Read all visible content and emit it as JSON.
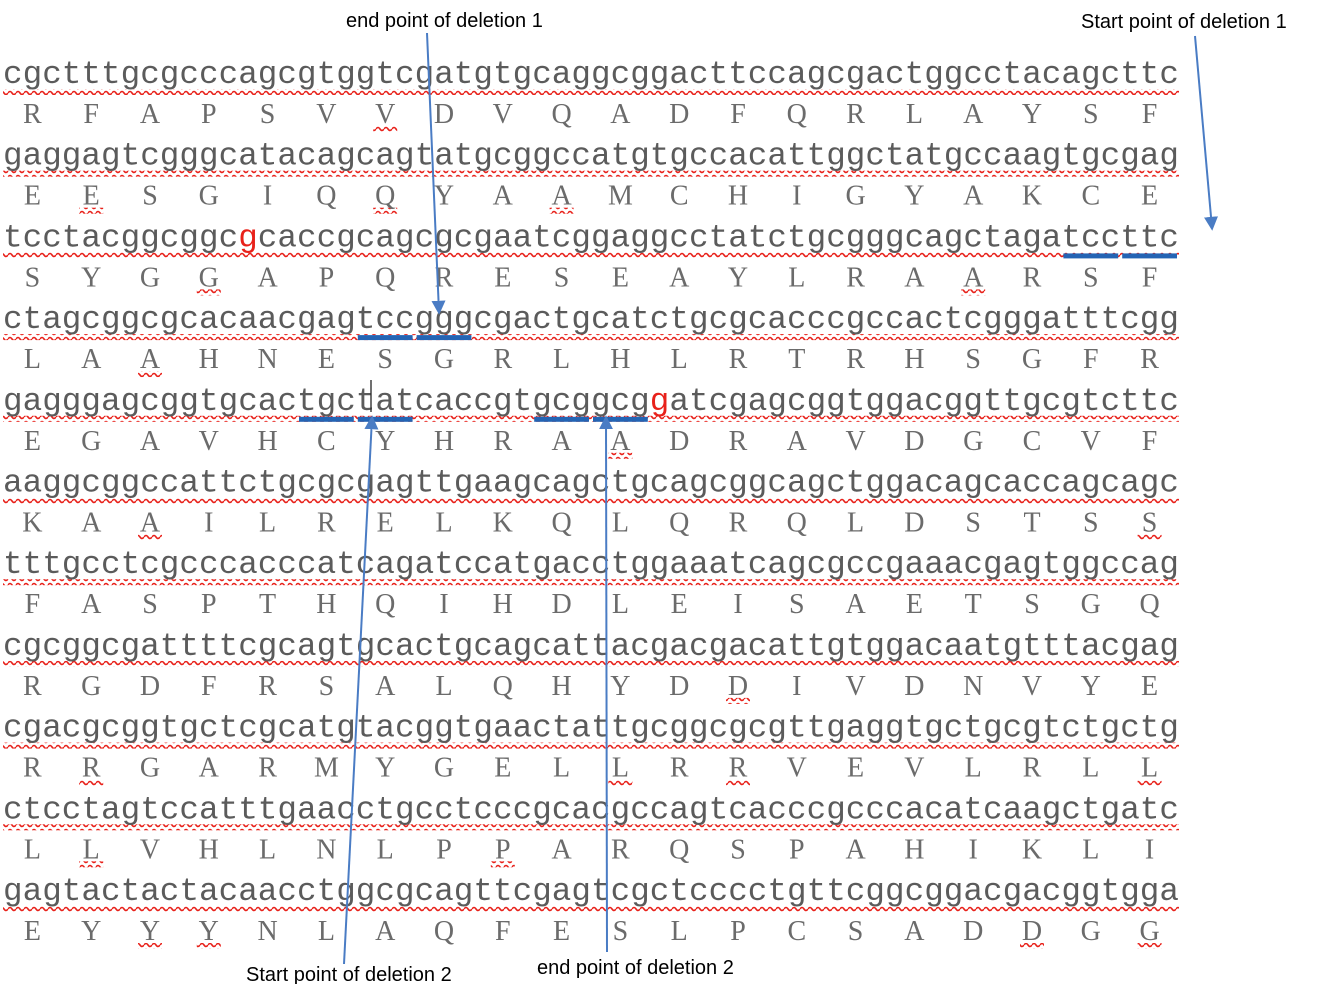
{
  "annotations": [
    {
      "label": "end point of deletion 1"
    },
    {
      "label": "Start point of deletion 1"
    },
    {
      "label": "Start point of deletion 2"
    },
    {
      "label": "end point of deletion 2"
    }
  ],
  "colors": {
    "dna_text": "#5b5b5b",
    "amino_acid_text": "#6b6b6b",
    "highlight_base": "#e8211a",
    "squiggle_underline": "#e8211a",
    "marker_bar": "#2464b4",
    "arrow": "#4a7cc4"
  },
  "rows": [
    {
      "dna": "cgctttgcgcccagcgtggtcgatgtgcaggcggacttccagcgactggcctacagcttc",
      "aa": [
        "R",
        "F",
        "A",
        "P",
        "S",
        "V",
        "V",
        "D",
        "V",
        "Q",
        "A",
        "D",
        "F",
        "Q",
        "R",
        "L",
        "A",
        "Y",
        "S",
        "F"
      ]
    },
    {
      "dna": "gaggagtcgggcatacagcagtatgcggccatgtgccacattggctatgccaagtgcgag",
      "aa": [
        "E",
        "E",
        "S",
        "G",
        "I",
        "Q",
        "Q",
        "Y",
        "A",
        "A",
        "M",
        "C",
        "H",
        "I",
        "G",
        "Y",
        "A",
        "K",
        "C",
        "E"
      ]
    },
    {
      "dna": "tcctacggcggcgcaccgcagcgcgaatcggaggcctatctgcgggcagctagatccttc",
      "aa": [
        "S",
        "Y",
        "G",
        "G",
        "A",
        "P",
        "Q",
        "R",
        "E",
        "S",
        "E",
        "A",
        "Y",
        "L",
        "R",
        "A",
        "A",
        "R",
        "S",
        "F"
      ]
    },
    {
      "dna": "ctagcggcgcacaacgagtccgggcgactgcatctgcgcacccgccactcgggatttcgg",
      "aa": [
        "L",
        "A",
        "A",
        "H",
        "N",
        "E",
        "S",
        "G",
        "R",
        "L",
        "H",
        "L",
        "R",
        "T",
        "R",
        "H",
        "S",
        "G",
        "F",
        "R"
      ]
    },
    {
      "dna": "gagggagcggtgcactgctatcaccgtgcggcggatcgagcggtggacggttgcgtcttc",
      "aa": [
        "E",
        "G",
        "A",
        "V",
        "H",
        "C",
        "Y",
        "H",
        "R",
        "A",
        "A",
        "D",
        "R",
        "A",
        "V",
        "D",
        "G",
        "C",
        "V",
        "F"
      ]
    },
    {
      "dna": "aaggcggccattctgcgcgagttgaagcagctgcagcggcagctggacagcaccagcagc",
      "aa": [
        "K",
        "A",
        "A",
        "I",
        "L",
        "R",
        "E",
        "L",
        "K",
        "Q",
        "L",
        "Q",
        "R",
        "Q",
        "L",
        "D",
        "S",
        "T",
        "S",
        "S"
      ]
    },
    {
      "dna": "tttgcctcgcccacccatcagatccatgacctggaaatcagcgccgaaacgagtggccag",
      "aa": [
        "F",
        "A",
        "S",
        "P",
        "T",
        "H",
        "Q",
        "I",
        "H",
        "D",
        "L",
        "E",
        "I",
        "S",
        "A",
        "E",
        "T",
        "S",
        "G",
        "Q"
      ]
    },
    {
      "dna": "cgcggcgattttcgcagtgcactgcagcattacgacgacattgtggacaatgtttacgag",
      "aa": [
        "R",
        "G",
        "D",
        "F",
        "R",
        "S",
        "A",
        "L",
        "Q",
        "H",
        "Y",
        "D",
        "D",
        "I",
        "V",
        "D",
        "N",
        "V",
        "Y",
        "E"
      ]
    },
    {
      "dna": "cgacgcggtgctcgcatgtacggtgaactattgcggcgcgttgaggtgctgcgtctgctg",
      "aa": [
        "R",
        "R",
        "G",
        "A",
        "R",
        "M",
        "Y",
        "G",
        "E",
        "L",
        "L",
        "R",
        "R",
        "V",
        "E",
        "V",
        "L",
        "R",
        "L",
        "L"
      ]
    },
    {
      "dna": "ctcctagtccatttgaacctgcctcccgcacgccagtcacccgcccacatcaagctgatc",
      "aa": [
        "L",
        "L",
        "V",
        "H",
        "L",
        "N",
        "L",
        "P",
        "P",
        "A",
        "R",
        "Q",
        "S",
        "P",
        "A",
        "H",
        "I",
        "K",
        "L",
        "I"
      ]
    },
    {
      "dna": "gagtactactacaacctggcgcagttcgagtcgctcccctgttcggcggacgacggtgga",
      "aa": [
        "E",
        "Y",
        "Y",
        "Y",
        "N",
        "L",
        "A",
        "Q",
        "F",
        "E",
        "S",
        "L",
        "P",
        "C",
        "S",
        "A",
        "D",
        "D",
        "G",
        "G"
      ]
    }
  ],
  "red_bases": [
    {
      "row": 2,
      "index": 12
    },
    {
      "row": 4,
      "index": 33
    }
  ],
  "aa_squiggles": [
    {
      "row": 0,
      "index": 6
    },
    {
      "row": 1,
      "index": 1
    },
    {
      "row": 1,
      "index": 6
    },
    {
      "row": 1,
      "index": 9
    },
    {
      "row": 2,
      "index": 3
    },
    {
      "row": 2,
      "index": 16
    },
    {
      "row": 3,
      "index": 2
    },
    {
      "row": 4,
      "index": 10
    },
    {
      "row": 5,
      "index": 2
    },
    {
      "row": 5,
      "index": 19
    },
    {
      "row": 7,
      "index": 12
    },
    {
      "row": 8,
      "index": 1
    },
    {
      "row": 8,
      "index": 10
    },
    {
      "row": 8,
      "index": 12
    },
    {
      "row": 8,
      "index": 19
    },
    {
      "row": 9,
      "index": 1
    },
    {
      "row": 9,
      "index": 8
    },
    {
      "row": 10,
      "index": 2
    },
    {
      "row": 10,
      "index": 3
    },
    {
      "row": 10,
      "index": 17
    },
    {
      "row": 10,
      "index": 19
    }
  ],
  "marker_bars": [
    {
      "row": 2,
      "start": 54,
      "end": 57
    },
    {
      "row": 2,
      "start": 57,
      "end": 60
    },
    {
      "row": 3,
      "start": 18,
      "end": 21
    },
    {
      "row": 3,
      "start": 21,
      "end": 24
    },
    {
      "row": 4,
      "start": 15,
      "end": 18
    },
    {
      "row": 4,
      "start": 18,
      "end": 21
    },
    {
      "row": 4,
      "start": 27,
      "end": 30
    },
    {
      "row": 4,
      "start": 30,
      "end": 33
    }
  ]
}
